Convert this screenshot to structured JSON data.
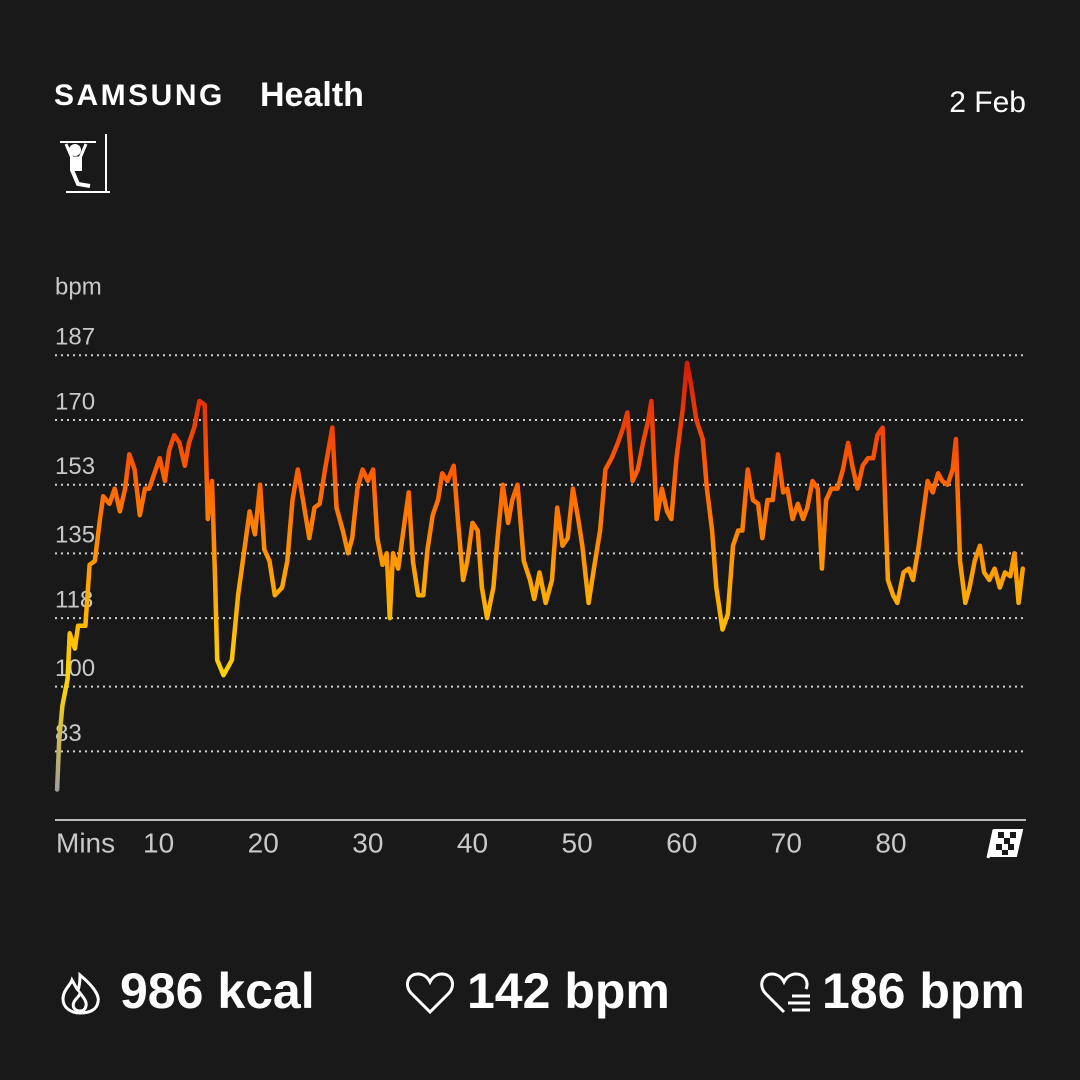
{
  "header": {
    "brand": "SAMSUNG",
    "app": "Health",
    "date": "2 Feb"
  },
  "chart_data": {
    "type": "line",
    "y_label": "bpm",
    "x_label": "Mins",
    "xlim": [
      0,
      93
    ],
    "xticks": [
      10,
      20,
      30,
      40,
      50,
      60,
      70,
      80
    ],
    "ylim": [
      65,
      191
    ],
    "yticks": [
      83,
      100,
      118,
      135,
      153,
      170,
      187
    ],
    "grid": true,
    "colors": [
      "#9e9e9e",
      "#ffd600",
      "#ffa000",
      "#ff5a00",
      "#d41a0a"
    ],
    "x": [
      0.3,
      0.5,
      0.8,
      1.3,
      1.5,
      2.0,
      2.3,
      3.0,
      3.4,
      3.9,
      4.4,
      4.7,
      5.3,
      5.8,
      6.3,
      6.8,
      7.2,
      7.7,
      8.2,
      8.7,
      9.1,
      9.6,
      10.1,
      10.6,
      11.0,
      11.5,
      12.0,
      12.5,
      12.9,
      13.4,
      13.9,
      14.4,
      14.7,
      15.1,
      15.4,
      15.6,
      16.2,
      17.0,
      17.6,
      18.0,
      18.7,
      19.2,
      19.7,
      20.1,
      20.6,
      21.1,
      21.8,
      22.3,
      22.8,
      23.3,
      23.8,
      24.4,
      24.9,
      25.4,
      25.9,
      26.6,
      27.0,
      27.6,
      28.1,
      28.5,
      29.0,
      29.5,
      30.0,
      30.5,
      30.9,
      31.4,
      31.8,
      32.1,
      32.4,
      32.9,
      33.4,
      33.9,
      34.3,
      34.8,
      35.3,
      35.7,
      36.2,
      36.7,
      37.1,
      37.6,
      38.2,
      38.6,
      39.1,
      39.5,
      40.0,
      40.5,
      40.9,
      41.4,
      42.0,
      42.4,
      42.9,
      43.4,
      43.8,
      44.3,
      44.9,
      45.5,
      45.9,
      46.4,
      47.0,
      47.6,
      48.1,
      48.6,
      49.1,
      49.6,
      50.1,
      50.5,
      51.1,
      51.6,
      52.2,
      52.7,
      53.3,
      53.9,
      54.4,
      54.8,
      55.3,
      55.8,
      56.3,
      56.8,
      57.1,
      57.6,
      58.1,
      58.6,
      59.0,
      59.5,
      60.1,
      60.5,
      60.9,
      61.4,
      62.0,
      62.4,
      62.9,
      63.3,
      63.9,
      64.4,
      64.9,
      65.4,
      65.8,
      66.3,
      66.8,
      67.3,
      67.7,
      68.2,
      68.7,
      69.2,
      69.7,
      70.1,
      70.6,
      71.1,
      71.6,
      72.0,
      72.5,
      73.0,
      73.4,
      73.8,
      74.3,
      74.9,
      75.4,
      75.9,
      76.3,
      76.8,
      77.3,
      77.8,
      78.3,
      78.7,
      79.2,
      79.7,
      80.2,
      80.6,
      81.2,
      81.7,
      82.1,
      82.6,
      83.0,
      83.5,
      84.0,
      84.5,
      84.9,
      85.4,
      85.9,
      86.2,
      86.6,
      87.1,
      87.5,
      88.0,
      88.5,
      88.9,
      89.4,
      89.9,
      90.4,
      90.9,
      91.4,
      91.8,
      92.2,
      92.6
    ],
    "values": [
      73,
      86,
      95,
      102,
      114,
      110,
      116,
      116,
      132,
      133,
      144,
      150,
      148,
      152,
      146,
      152,
      161,
      157,
      145,
      152,
      152,
      156,
      160,
      154,
      162,
      166,
      164,
      158,
      164,
      168,
      175,
      174,
      144,
      154,
      128,
      107,
      103,
      107,
      124,
      132,
      146,
      140,
      153,
      136,
      133,
      124,
      126,
      133,
      149,
      157,
      149,
      139,
      147,
      148,
      157,
      168,
      147,
      141,
      135,
      139,
      152,
      157,
      154,
      157,
      139,
      132,
      135,
      118,
      135,
      131,
      141,
      151,
      133,
      124,
      124,
      136,
      145,
      149,
      156,
      154,
      158,
      144,
      128,
      133,
      143,
      141,
      126,
      118,
      126,
      139,
      153,
      143,
      149,
      153,
      133,
      128,
      123,
      130,
      122,
      128,
      147,
      137,
      139,
      152,
      144,
      137,
      122,
      131,
      141,
      157,
      160,
      164,
      168,
      172,
      154,
      157,
      164,
      170,
      175,
      144,
      152,
      146,
      144,
      160,
      173,
      185,
      179,
      170,
      165,
      152,
      141,
      126,
      115,
      119,
      137,
      141,
      141,
      157,
      149,
      148,
      139,
      149,
      149,
      161,
      151,
      152,
      144,
      148,
      144,
      147,
      154,
      152,
      131,
      149,
      152,
      152,
      157,
      164,
      158,
      152,
      158,
      160,
      160,
      166,
      168,
      128,
      124,
      122,
      130,
      131,
      128,
      136,
      144,
      154,
      151,
      156,
      154,
      153,
      157,
      165,
      133,
      122,
      126,
      133,
      137,
      130,
      128,
      131,
      126,
      130,
      129,
      135,
      122,
      131
    ]
  },
  "summary": {
    "calories": "986 kcal",
    "avg_heart_rate": "142 bpm",
    "max_heart_rate": "186 bpm"
  }
}
